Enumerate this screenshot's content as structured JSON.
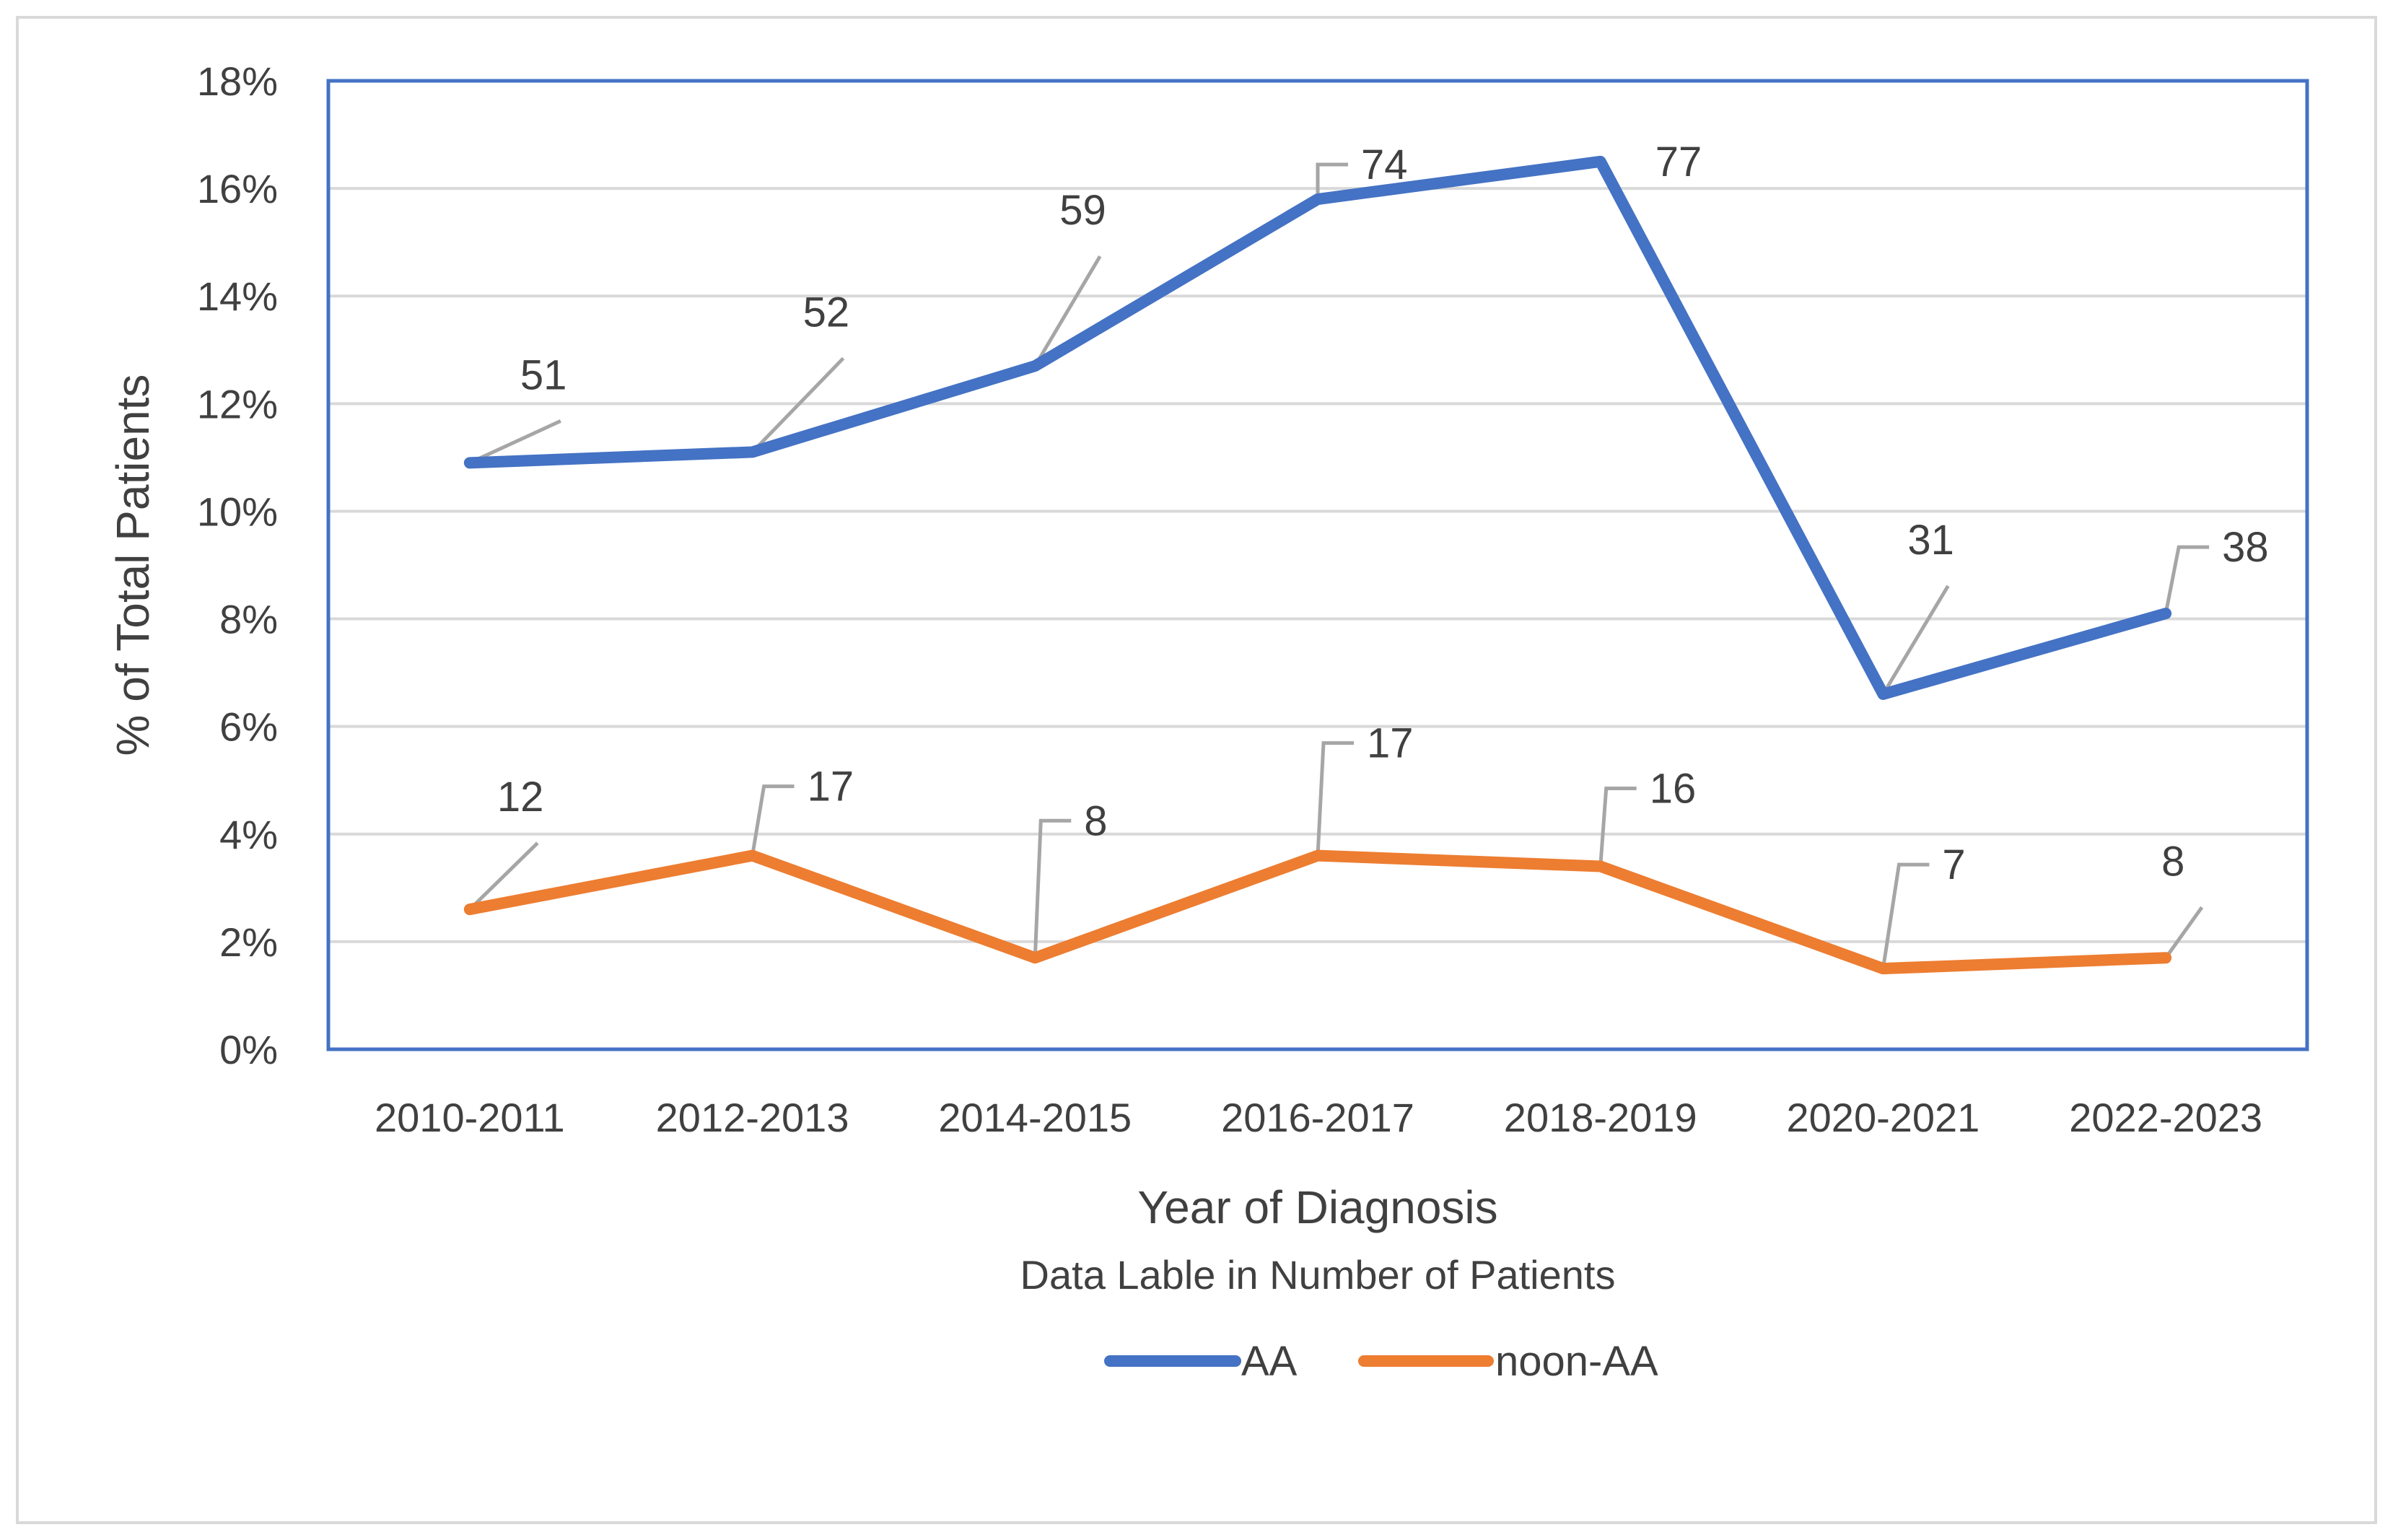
{
  "chart_data": {
    "type": "line",
    "categories": [
      "2010-2011",
      "2012-2013",
      "2014-2015",
      "2016-2017",
      "2018-2019",
      "2020-2021",
      "2022-2023"
    ],
    "series": [
      {
        "name": "AA",
        "color": "#4472c4",
        "values": [
          10.9,
          11.1,
          12.7,
          15.8,
          16.5,
          6.6,
          8.1
        ],
        "labels": [
          "51",
          "52",
          "59",
          "74",
          "77",
          "31",
          "38"
        ]
      },
      {
        "name": "noon-AA",
        "color": "#ed7d31",
        "values": [
          2.6,
          3.6,
          1.7,
          3.6,
          3.4,
          1.5,
          1.7
        ],
        "labels": [
          "12",
          "17",
          "8",
          "17",
          "16",
          "7",
          "8"
        ]
      }
    ],
    "yticks": [
      "0%",
      "2%",
      "4%",
      "6%",
      "8%",
      "10%",
      "12%",
      "14%",
      "16%",
      "18%"
    ],
    "ylim": [
      0,
      18
    ],
    "xlabel": "Year of Diagnosis",
    "subtitle": "Data Lable in Number of Patients",
    "ylabel": "% of Total Patients",
    "grid": true,
    "legend_position": "bottom",
    "leader_line_color": "#a6a6a6",
    "gridline_color": "#d9d9d9",
    "plot_border_color": "#4472c4"
  }
}
